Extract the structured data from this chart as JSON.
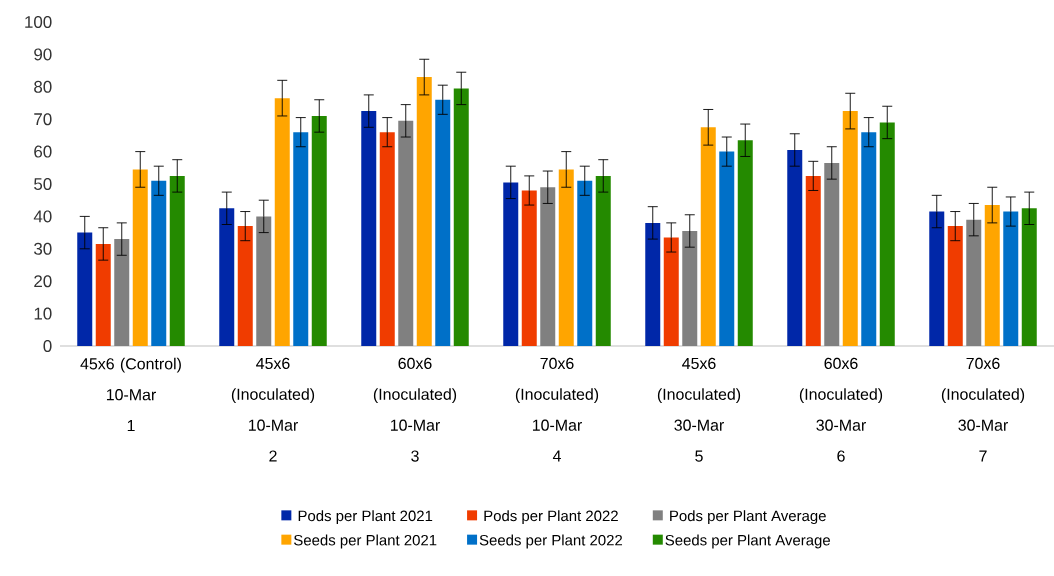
{
  "chart_data": {
    "type": "bar",
    "categories": [
      "45x6 (Control)\n10-Mar\n1",
      "45x6\n(Inoculated)\n10-Mar\n2",
      "60x6\n(Inoculated)\n10-Mar\n3",
      "70x6\n(Inoculated)\n10-Mar\n4",
      "45x6\n(Inoculated)\n30-Mar\n5",
      "60x6\n(Inoculated)\n30-Mar\n6",
      "70x6\n(Inoculated)\n30-Mar\n7"
    ],
    "series": [
      {
        "name": "Pods per Plant 2021",
        "color": "#0027a8",
        "values": [
          35,
          42.5,
          72.5,
          50.5,
          38,
          60.5,
          41.5
        ],
        "errors": [
          5,
          5,
          5,
          5,
          5,
          5,
          5
        ]
      },
      {
        "name": "Pods per Plant 2022",
        "color": "#f03c00",
        "values": [
          31.5,
          37,
          66,
          48,
          33.5,
          52.5,
          37
        ],
        "errors": [
          5,
          4.5,
          4.5,
          4.5,
          4.5,
          4.5,
          4.5
        ]
      },
      {
        "name": "Pods per Plant Average",
        "color": "#808080",
        "values": [
          33,
          40,
          69.5,
          49,
          35.5,
          56.5,
          39
        ],
        "errors": [
          5,
          5,
          5,
          5,
          5,
          5,
          5
        ]
      },
      {
        "name": "Seeds per Plant 2021",
        "color": "#ffa500",
        "values": [
          54.5,
          76.5,
          83,
          54.5,
          67.5,
          72.5,
          43.5
        ],
        "errors": [
          5.5,
          5.5,
          5.5,
          5.5,
          5.5,
          5.5,
          5.5
        ]
      },
      {
        "name": "Seeds per Plant 2022",
        "color": "#0070c8",
        "values": [
          51,
          66,
          76,
          51,
          60,
          66,
          41.5
        ],
        "errors": [
          4.5,
          4.5,
          4.5,
          4.5,
          4.5,
          4.5,
          4.5
        ]
      },
      {
        "name": "Seeds per Plant Average",
        "color": "#248a00",
        "values": [
          52.5,
          71,
          79.5,
          52.5,
          63.5,
          69,
          42.5
        ],
        "errors": [
          5,
          5,
          5,
          5,
          5,
          5,
          5
        ]
      }
    ],
    "ylim": [
      0,
      100
    ],
    "yticks": [
      0,
      10,
      20,
      30,
      40,
      50,
      60,
      70,
      80,
      90,
      100
    ],
    "grid": false,
    "legend": "bottom"
  }
}
